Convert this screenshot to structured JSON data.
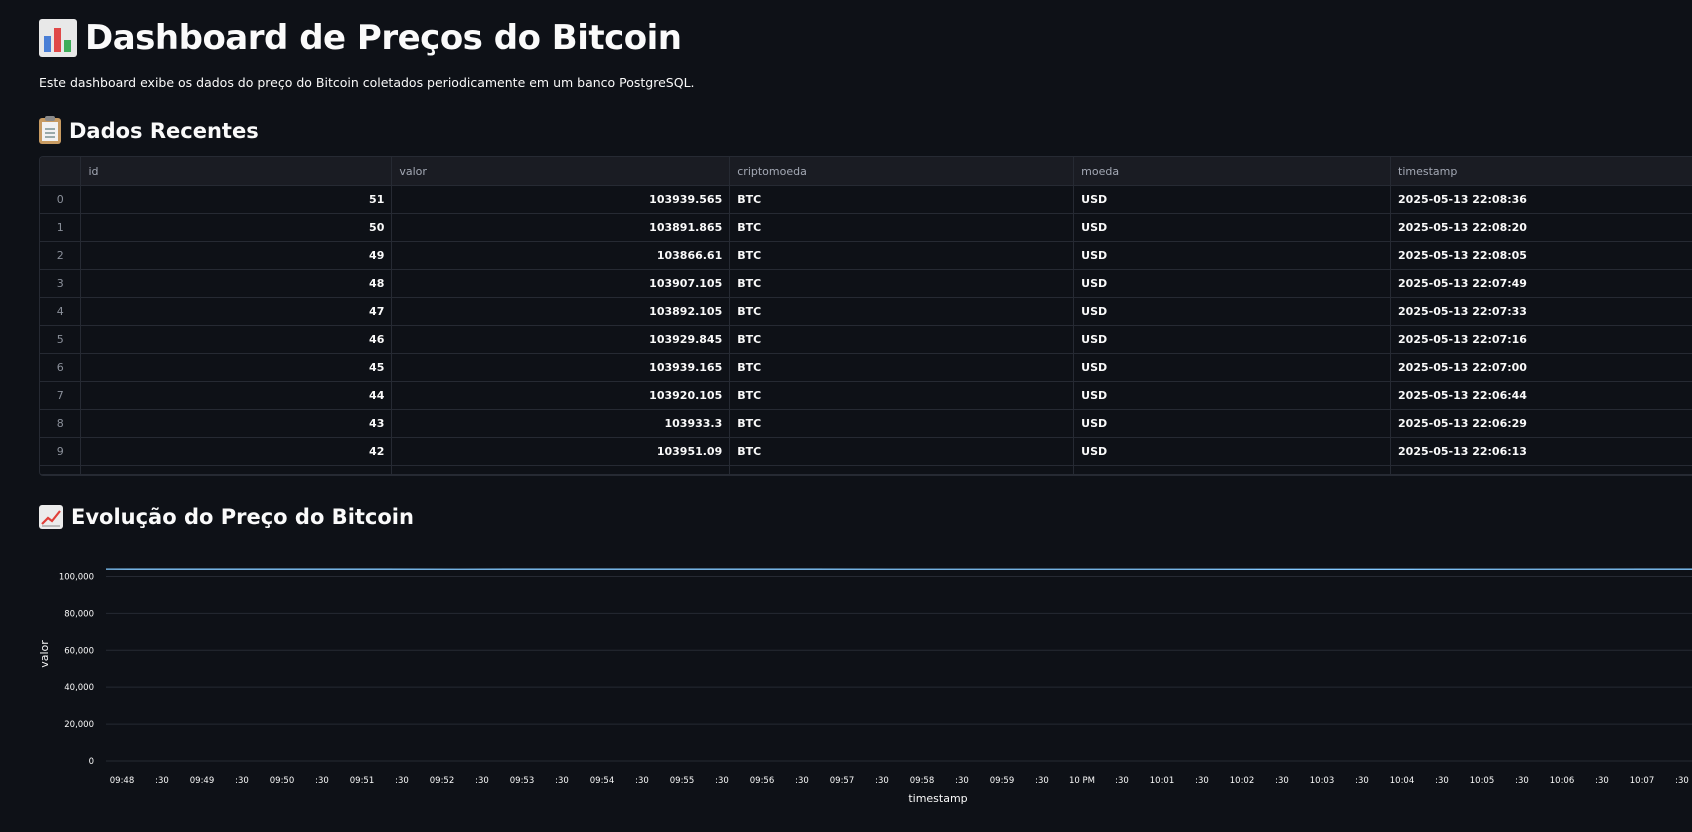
{
  "header": {
    "title": "Dashboard de Preços do Bitcoin",
    "title_icon": "bar-chart-icon",
    "description": "Este dashboard exibe os dados do preço do Bitcoin coletados periodicamente em um banco PostgreSQL."
  },
  "recent": {
    "heading": "Dados Recentes",
    "heading_icon": "clipboard-icon",
    "columns": [
      "id",
      "valor",
      "criptomoeda",
      "moeda",
      "timestamp"
    ],
    "rows": [
      {
        "index": "0",
        "id": "51",
        "valor": "103939.565",
        "criptomoeda": "BTC",
        "moeda": "USD",
        "timestamp": "2025-05-13 22:08:36"
      },
      {
        "index": "1",
        "id": "50",
        "valor": "103891.865",
        "criptomoeda": "BTC",
        "moeda": "USD",
        "timestamp": "2025-05-13 22:08:20"
      },
      {
        "index": "2",
        "id": "49",
        "valor": "103866.61",
        "criptomoeda": "BTC",
        "moeda": "USD",
        "timestamp": "2025-05-13 22:08:05"
      },
      {
        "index": "3",
        "id": "48",
        "valor": "103907.105",
        "criptomoeda": "BTC",
        "moeda": "USD",
        "timestamp": "2025-05-13 22:07:49"
      },
      {
        "index": "4",
        "id": "47",
        "valor": "103892.105",
        "criptomoeda": "BTC",
        "moeda": "USD",
        "timestamp": "2025-05-13 22:07:33"
      },
      {
        "index": "5",
        "id": "46",
        "valor": "103929.845",
        "criptomoeda": "BTC",
        "moeda": "USD",
        "timestamp": "2025-05-13 22:07:16"
      },
      {
        "index": "6",
        "id": "45",
        "valor": "103939.165",
        "criptomoeda": "BTC",
        "moeda": "USD",
        "timestamp": "2025-05-13 22:07:00"
      },
      {
        "index": "7",
        "id": "44",
        "valor": "103920.105",
        "criptomoeda": "BTC",
        "moeda": "USD",
        "timestamp": "2025-05-13 22:06:44"
      },
      {
        "index": "8",
        "id": "43",
        "valor": "103933.3",
        "criptomoeda": "BTC",
        "moeda": "USD",
        "timestamp": "2025-05-13 22:06:29"
      },
      {
        "index": "9",
        "id": "42",
        "valor": "103951.09",
        "criptomoeda": "BTC",
        "moeda": "USD",
        "timestamp": "2025-05-13 22:06:13"
      }
    ]
  },
  "evolution": {
    "heading": "Evolução do Preço do Bitcoin",
    "heading_icon": "chart-increasing-icon"
  },
  "colors": {
    "background": "#0e1117",
    "line": "#83c9ff",
    "grid": "#262a33"
  },
  "chart_data": {
    "type": "line",
    "title": "",
    "xlabel": "timestamp",
    "ylabel": "valor",
    "ylim": [
      0,
      110000
    ],
    "yticks": [
      0,
      20000,
      40000,
      60000,
      80000,
      100000
    ],
    "ytick_labels": [
      "0",
      "20,000",
      "40,000",
      "60,000",
      "80,000",
      "100,000"
    ],
    "xtick_labels": [
      "09:48",
      ":30",
      "09:49",
      ":30",
      "09:50",
      ":30",
      "09:51",
      ":30",
      "09:52",
      ":30",
      "09:53",
      ":30",
      "09:54",
      ":30",
      "09:55",
      ":30",
      "09:56",
      ":30",
      "09:57",
      ":30",
      "09:58",
      ":30",
      "09:59",
      ":30",
      "10 PM",
      ":30",
      "10:01",
      ":30",
      "10:02",
      ":30",
      "10:03",
      ":30",
      "10:04",
      ":30",
      "10:05",
      ":30",
      "10:06",
      ":30",
      "10:07",
      ":30"
    ],
    "grid": true,
    "series": [
      {
        "name": "valor",
        "values": [
          103951.09,
          103933.3,
          103920.105,
          103939.165,
          103929.845,
          103892.105,
          103907.105,
          103866.61,
          103891.865,
          103939.565
        ]
      }
    ]
  }
}
